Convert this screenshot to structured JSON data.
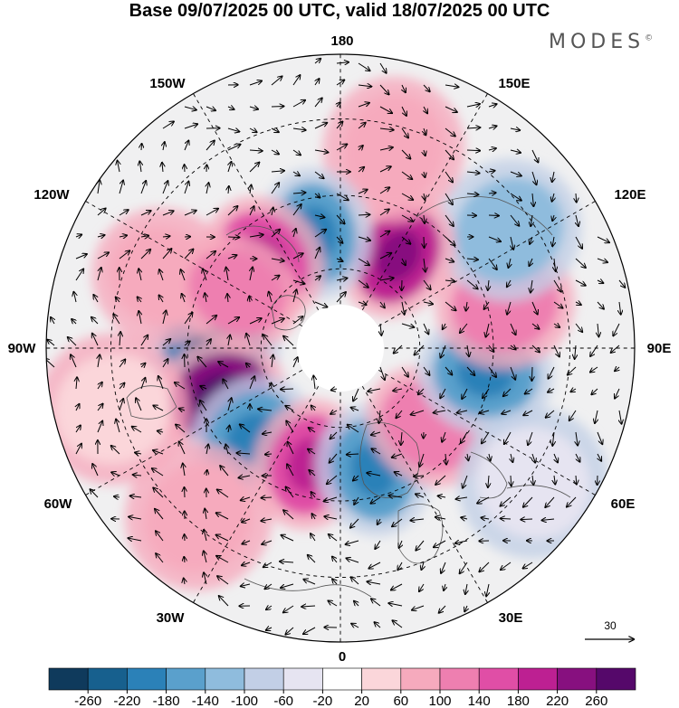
{
  "title": "Base 09/07/2025 00 UTC, valid 18/07/2025 00 UTC",
  "brand": "MODES",
  "brand_mark": "©",
  "longitude_labels": {
    "top": "180",
    "bottom": "0",
    "left": "90W",
    "right": "90E",
    "upper_left": "150W",
    "upper_right": "150E",
    "mid_left_upper": "120W",
    "mid_right_upper": "120E",
    "mid_left_lower": "60W",
    "mid_right_lower": "60E",
    "lower_left": "30W",
    "lower_right": "30E"
  },
  "vector_reference": "30",
  "colorbar": {
    "ticks": [
      "-260",
      "-220",
      "-180",
      "-140",
      "-100",
      "-60",
      "-20",
      "20",
      "60",
      "100",
      "140",
      "180",
      "220",
      "260"
    ],
    "colors": [
      "#0f3a5c",
      "#17608e",
      "#2b81b8",
      "#5aa0cc",
      "#8fbcdd",
      "#c2cfe6",
      "#e6e4f1",
      "#ffffff",
      "#fbd6da",
      "#f6aabd",
      "#ee7fb0",
      "#e04ea6",
      "#bd2092",
      "#87107f",
      "#55086a"
    ]
  },
  "anomaly_cells": [
    {
      "lon": -90,
      "r": 0.43,
      "sign": "neg",
      "level": 4
    },
    {
      "lon": -68,
      "r": 0.44,
      "sign": "pos",
      "level": 5
    },
    {
      "lon": -45,
      "r": 0.43,
      "sign": "neg",
      "level": 3
    },
    {
      "lon": -15,
      "r": 0.41,
      "sign": "pos",
      "level": 3
    },
    {
      "lon": 15,
      "r": 0.43,
      "sign": "neg",
      "level": 3
    },
    {
      "lon": 48,
      "r": 0.4,
      "sign": "pos",
      "level": 2
    },
    {
      "lon": 80,
      "r": 0.5,
      "sign": "neg",
      "level": 3
    },
    {
      "lon": 105,
      "r": 0.58,
      "sign": "pos",
      "level": 2
    },
    {
      "lon": 125,
      "r": 0.7,
      "sign": "neg",
      "level": 2
    },
    {
      "lon": 148,
      "r": 0.37,
      "sign": "pos",
      "level": 4
    },
    {
      "lon": 165,
      "r": 0.7,
      "sign": "pos",
      "level": 1
    },
    {
      "lon": -168,
      "r": 0.4,
      "sign": "neg",
      "level": 3
    },
    {
      "lon": -140,
      "r": 0.4,
      "sign": "pos",
      "level": 3
    },
    {
      "lon": -112,
      "r": 0.65,
      "sign": "pos",
      "level": 1
    },
    {
      "lon": -118,
      "r": 0.4,
      "sign": "pos",
      "level": 2
    },
    {
      "lon": -40,
      "r": 0.75,
      "sign": "pos",
      "level": 1
    },
    {
      "lon": 55,
      "r": 0.8,
      "sign": "neg",
      "level": 0
    },
    {
      "lon": -75,
      "r": 0.8,
      "sign": "pos",
      "level": 0
    }
  ]
}
